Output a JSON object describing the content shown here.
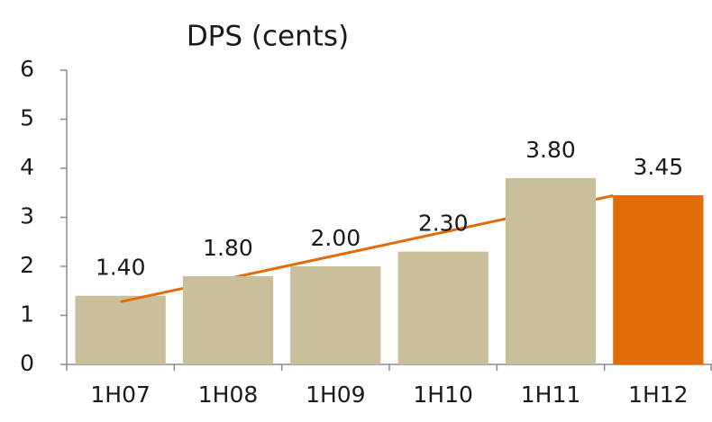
{
  "chart_data": {
    "type": "bar",
    "title": "DPS (cents)",
    "categories": [
      "1H07",
      "1H08",
      "1H09",
      "1H10",
      "1H11",
      "1H12"
    ],
    "values": [
      1.4,
      1.8,
      2.0,
      2.3,
      3.8,
      3.45
    ],
    "value_labels": [
      "1.40",
      "1.80",
      "2.00",
      "2.30",
      "3.80",
      "3.45"
    ],
    "colors": [
      "#c9bf9b",
      "#c9bf9b",
      "#c9bf9b",
      "#c9bf9b",
      "#c9bf9b",
      "#e36c0a"
    ],
    "trendline": {
      "color": "#e36c0a"
    },
    "ylim": [
      0,
      6
    ],
    "yticks": [
      0,
      1,
      2,
      3,
      4,
      5,
      6
    ],
    "grid": false
  }
}
